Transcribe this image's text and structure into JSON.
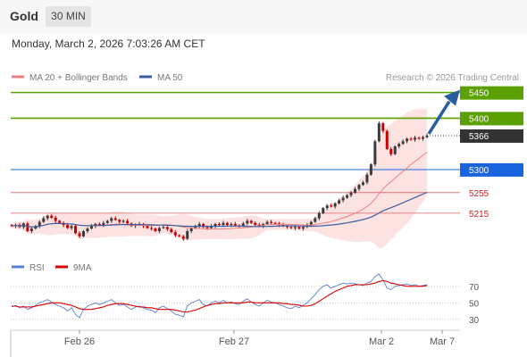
{
  "header": {
    "symbol": "Gold",
    "timeframe": "30 MIN"
  },
  "datetime": "Monday, March 2, 2026 7:03:26 AM CET",
  "legend": {
    "items": [
      {
        "label": "MA 20 + Bollinger Bands",
        "color": "#f08080"
      },
      {
        "label": "MA 50",
        "color": "#3a5fa0"
      }
    ],
    "credit": "Research © 2026 Trading Central"
  },
  "colors": {
    "up": "#3a3a3a",
    "down": "#cc0000",
    "green_level": "#5aa000",
    "blue_level": "#1b64e0",
    "red_level": "#e06060",
    "arrow": "#2a5d9f",
    "band": "#fde2e2",
    "rsi": "#5a7fd0",
    "rsi_ma": "#dd0000"
  },
  "chart_data": [
    {
      "type": "candlestick",
      "y_unit": "price",
      "ylim": [
        5140,
        5465
      ],
      "x_ticks": [
        "Feb 26",
        "Feb 27",
        "Mar 2",
        "Mar 7"
      ],
      "levels": [
        {
          "value": 5450,
          "label": "5450",
          "style": "green-box"
        },
        {
          "value": 5400,
          "label": "5400",
          "style": "green-box"
        },
        {
          "value": 5366,
          "label": "5366",
          "style": "last-price"
        },
        {
          "value": 5300,
          "label": "5300",
          "style": "blue-box"
        },
        {
          "value": 5255,
          "label": "5255",
          "style": "red-text"
        },
        {
          "value": 5215,
          "label": "5215",
          "style": "red-text"
        }
      ],
      "projection": {
        "from": 5366,
        "to": 5450,
        "direction": "up"
      },
      "closes": [
        5190,
        5192,
        5188,
        5195,
        5180,
        5185,
        5190,
        5198,
        5205,
        5210,
        5206,
        5200,
        5196,
        5192,
        5186,
        5190,
        5176,
        5170,
        5180,
        5185,
        5190,
        5194,
        5192,
        5196,
        5200,
        5205,
        5202,
        5198,
        5200,
        5195,
        5190,
        5192,
        5194,
        5190,
        5186,
        5185,
        5180,
        5186,
        5188,
        5184,
        5178,
        5172,
        5170,
        5165,
        5180,
        5186,
        5190,
        5194,
        5188,
        5186,
        5190,
        5194,
        5192,
        5196,
        5192,
        5194,
        5191,
        5190,
        5195,
        5200,
        5196,
        5192,
        5190,
        5194,
        5198,
        5196,
        5195,
        5192,
        5190,
        5188,
        5186,
        5188,
        5185,
        5188,
        5192,
        5198,
        5205,
        5215,
        5225,
        5230,
        5228,
        5234,
        5240,
        5245,
        5250,
        5255,
        5262,
        5270,
        5275,
        5290,
        5310,
        5355,
        5390,
        5375,
        5340,
        5330,
        5345,
        5350,
        5355,
        5360,
        5358,
        5362,
        5360,
        5363,
        5366
      ]
    },
    {
      "type": "line",
      "title": "RSI",
      "series": [
        {
          "name": "RSI"
        },
        {
          "name": "9MA"
        }
      ],
      "ylim": [
        20,
        85
      ],
      "y_ticks": [
        70,
        50,
        30
      ],
      "rsi": [
        45,
        47,
        44,
        46,
        42,
        44,
        47,
        50,
        52,
        54,
        51,
        48,
        46,
        44,
        40,
        44,
        36,
        32,
        42,
        46,
        48,
        50,
        48,
        50,
        52,
        54,
        50,
        47,
        48,
        45,
        42,
        45,
        46,
        44,
        42,
        41,
        38,
        44,
        46,
        43,
        40,
        36,
        35,
        33,
        46,
        50,
        52,
        54,
        48,
        46,
        50,
        52,
        50,
        53,
        50,
        51,
        49,
        48,
        52,
        55,
        51,
        48,
        46,
        50,
        53,
        51,
        50,
        48,
        46,
        44,
        43,
        46,
        44,
        47,
        50,
        55,
        60,
        66,
        70,
        72,
        68,
        70,
        72,
        74,
        73,
        74,
        73,
        72,
        71,
        74,
        76,
        82,
        85,
        78,
        68,
        66,
        70,
        71,
        72,
        73,
        71,
        72,
        70,
        71,
        72
      ],
      "ma9": [
        46,
        46,
        45,
        45,
        45,
        45,
        46,
        47,
        48,
        49,
        50,
        50,
        50,
        49,
        48,
        47,
        45,
        43,
        42,
        42,
        42,
        43,
        44,
        45,
        47,
        48,
        49,
        49,
        49,
        48,
        47,
        46,
        45,
        45,
        44,
        44,
        43,
        42,
        42,
        42,
        42,
        41,
        40,
        39,
        39,
        40,
        41,
        43,
        45,
        47,
        48,
        49,
        49,
        50,
        50,
        50,
        50,
        50,
        50,
        51,
        51,
        50,
        50,
        50,
        50,
        50,
        50,
        50,
        49,
        49,
        48,
        48,
        47,
        46,
        46,
        47,
        49,
        52,
        55,
        58,
        61,
        64,
        66,
        68,
        70,
        71,
        72,
        72,
        72,
        72,
        73,
        74,
        76,
        77,
        76,
        74,
        73,
        72,
        71,
        70,
        70,
        70,
        70,
        70,
        71
      ]
    }
  ]
}
